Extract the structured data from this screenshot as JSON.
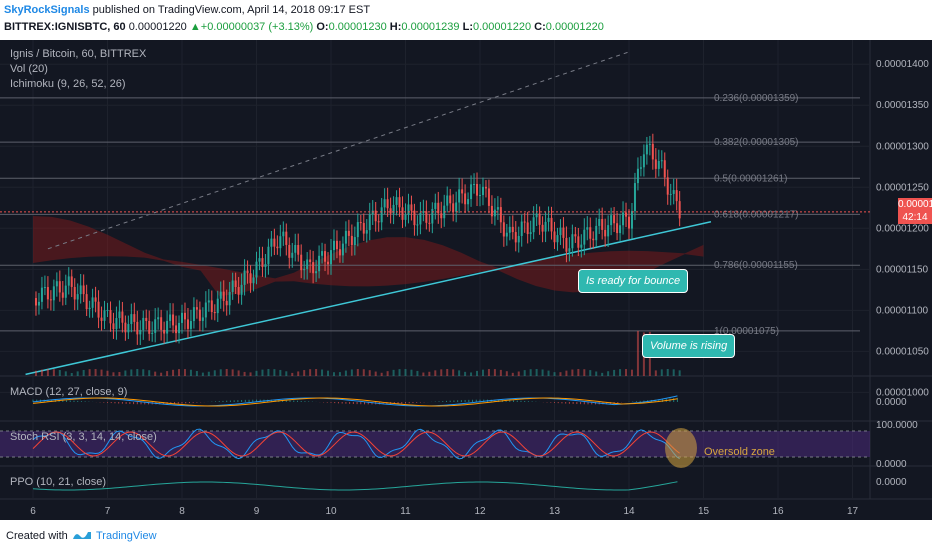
{
  "header": {
    "author": "SkyRockSignals",
    "published": " published on TradingView.com, April 14, 2018 09:17 EST",
    "symbol": "BITTREX:IGNISBTC, 60",
    "open_val": "0.00001220",
    "change": "+0.00000037 (+3.13%)",
    "o_label": "O:",
    "o_val": "0.00001230",
    "h_label": "H:",
    "h_val": "0.00001239",
    "l_label": "L:",
    "l_val": "0.00001220",
    "c_label": "C:",
    "c_val": "0.00001220",
    "up_arrow": "▲"
  },
  "legend": {
    "title": "Ignis / Bitcoin, 60, BITTREX",
    "vol": "Vol (20)",
    "ichimoku": "Ichimoku (9, 26, 52, 26)",
    "macd": "MACD (12, 27, close, 9)",
    "stoch": "Stoch RSI (3, 3, 14, 14, close)",
    "ppo": "PPO (10, 21, close)"
  },
  "annotations": {
    "bounce": "Is ready for bounce",
    "volume": "Volume is rising",
    "oversold": "Oversold zone"
  },
  "price_tags": {
    "last": "0.00001220",
    "countdown": "42:14"
  },
  "footer": {
    "created": "Created with",
    "brand": "TradingView"
  },
  "colors": {
    "bg": "#131722",
    "up": "#26a69a",
    "down": "#ef5350",
    "trend": "#3ec7d6",
    "kumo": "#8b1a1a",
    "macd": "#2196f3",
    "signal": "#ff9800",
    "stoch_k": "#2196f3",
    "stoch_d": "#f44336",
    "ppo": "#26a69a",
    "oversold": "#d7a640"
  },
  "chart_data": {
    "type": "line",
    "title": "Ignis / Bitcoin, 60, BITTREX",
    "x_ticks": [
      "6",
      "7",
      "8",
      "9",
      "10",
      "11",
      "12",
      "13",
      "14",
      "15",
      "16",
      "17"
    ],
    "price_axis": [
      "0.00001400",
      "0.00001350",
      "0.00001300",
      "0.00001250",
      "0.00001200",
      "0.00001150",
      "0.00001100",
      "0.00001050",
      "0.00001000"
    ],
    "ylim": [
      1.02e-05,
      1.41e-05
    ],
    "price_series": [
      {
        "day": 6.0,
        "close": 1.115e-05
      },
      {
        "day": 6.5,
        "close": 1.13e-05
      },
      {
        "day": 7.0,
        "close": 1.09e-05
      },
      {
        "day": 7.5,
        "close": 1.08e-05
      },
      {
        "day": 8.0,
        "close": 1.085e-05
      },
      {
        "day": 8.5,
        "close": 1.11e-05
      },
      {
        "day": 9.0,
        "close": 1.15e-05
      },
      {
        "day": 9.3,
        "close": 1.19e-05
      },
      {
        "day": 9.7,
        "close": 1.15e-05
      },
      {
        "day": 10.0,
        "close": 1.17e-05
      },
      {
        "day": 10.4,
        "close": 1.2e-05
      },
      {
        "day": 10.8,
        "close": 1.23e-05
      },
      {
        "day": 11.2,
        "close": 1.21e-05
      },
      {
        "day": 11.6,
        "close": 1.23e-05
      },
      {
        "day": 12.0,
        "close": 1.25e-05
      },
      {
        "day": 12.4,
        "close": 1.19e-05
      },
      {
        "day": 12.8,
        "close": 1.21e-05
      },
      {
        "day": 13.2,
        "close": 1.18e-05
      },
      {
        "day": 13.6,
        "close": 1.2e-05
      },
      {
        "day": 14.0,
        "close": 1.21e-05
      },
      {
        "day": 14.2,
        "close": 1.3e-05
      },
      {
        "day": 14.4,
        "close": 1.28e-05
      },
      {
        "day": 14.6,
        "close": 1.235e-05
      },
      {
        "day": 14.7,
        "close": 1.22e-05
      }
    ],
    "fib_levels": [
      {
        "label": "0.236(0.00001359)",
        "value": 1.359e-05
      },
      {
        "label": "0.382(0.00001305)",
        "value": 1.305e-05
      },
      {
        "label": "0.5(0.00001261)",
        "value": 1.261e-05
      },
      {
        "label": "0.618(0.00001217)",
        "value": 1.217e-05
      },
      {
        "label": "0.786(0.00001155)",
        "value": 1.155e-05
      },
      {
        "label": "1(0.00001075)",
        "value": 1.075e-05
      }
    ],
    "trendline": {
      "from": {
        "day": 5.9,
        "price": 1.022e-05
      },
      "to": {
        "day": 15.1,
        "price": 1.208e-05
      }
    },
    "macd_axis": "0.0000",
    "stoch_axis": [
      "100.0000",
      "0.0000"
    ],
    "ppo_axis": "0.0000"
  }
}
